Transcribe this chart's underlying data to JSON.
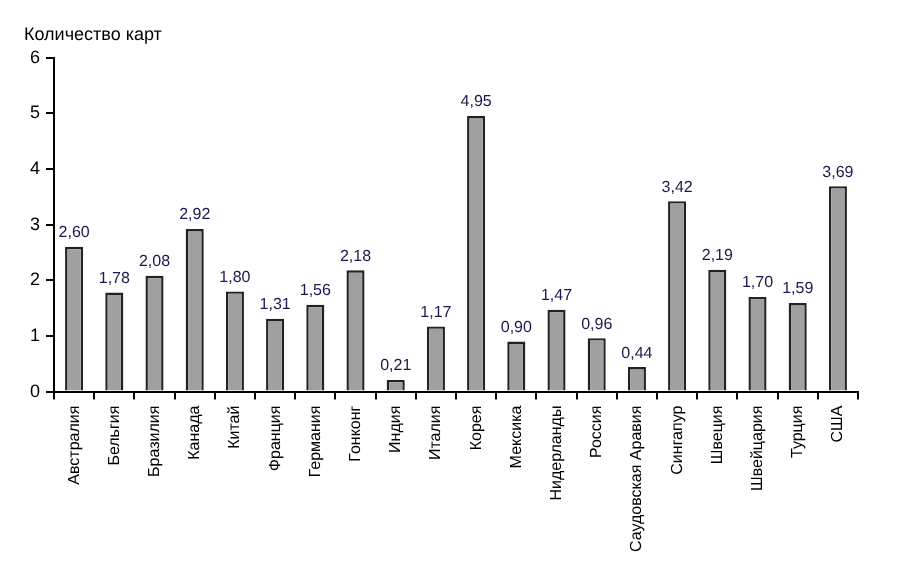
{
  "chart_data": {
    "type": "bar",
    "title": "Количество карт",
    "categories": [
      "Австралия",
      "Бельгия",
      "Бразилия",
      "Канада",
      "Китай",
      "Франция",
      "Германия",
      "Гонконг",
      "Индия",
      "Италия",
      "Корея",
      "Мексика",
      "Нидерланды",
      "Россия",
      "Саудовская Аравия",
      "Сингапур",
      "Швеция",
      "Швейцария",
      "Турция",
      "США"
    ],
    "values": [
      2.6,
      1.78,
      2.08,
      2.92,
      1.8,
      1.31,
      1.56,
      2.18,
      0.21,
      1.17,
      4.95,
      0.9,
      1.47,
      0.96,
      0.44,
      3.42,
      2.19,
      1.7,
      1.59,
      3.69
    ],
    "value_labels": [
      "2,60",
      "1,78",
      "2,08",
      "2,92",
      "1,80",
      "1,31",
      "1,56",
      "2,18",
      "0,21",
      "1,17",
      "4,95",
      "0,90",
      "1,47",
      "0,96",
      "0,44",
      "3,42",
      "2,19",
      "1,70",
      "1,59",
      "3,69"
    ],
    "color": "#a0a0a0",
    "ylim": [
      0,
      6
    ],
    "yticks": [
      0,
      1,
      2,
      3,
      4,
      5,
      6
    ],
    "grid": false,
    "legend": false
  }
}
